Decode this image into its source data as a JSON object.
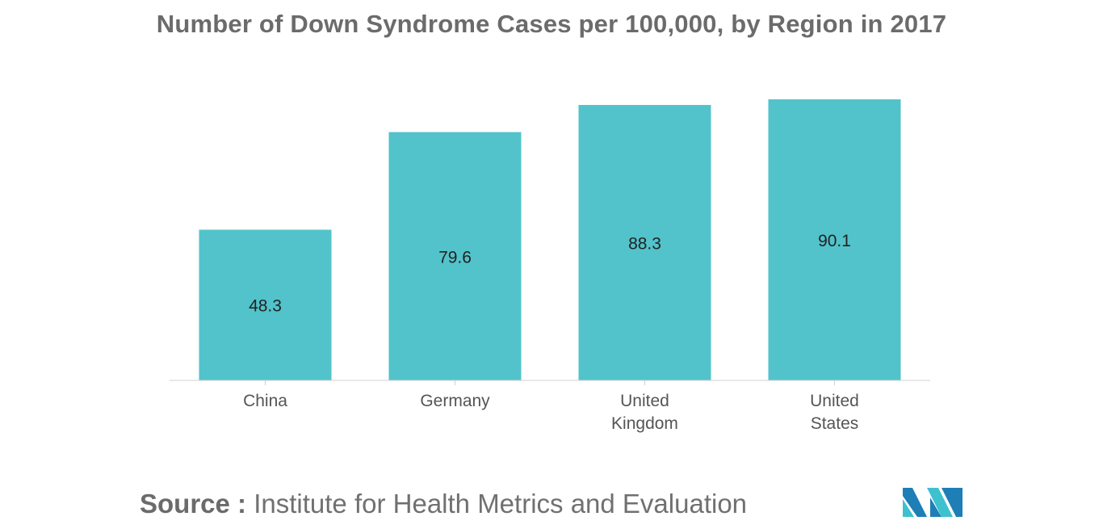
{
  "chart_data": {
    "type": "bar",
    "title": "Number of Down Syndrome Cases per 100,000, by Region in 2017",
    "categories": [
      [
        "China"
      ],
      [
        "Germany"
      ],
      [
        "United",
        "Kingdom"
      ],
      [
        "United",
        "States"
      ]
    ],
    "values": [
      48.3,
      79.6,
      88.3,
      90.1
    ],
    "value_labels": [
      "48.3",
      "79.6",
      "88.3",
      "90.1"
    ],
    "xlabel": "",
    "ylabel": "",
    "ylim": [
      0,
      90.1
    ],
    "grid": false,
    "legend": "none",
    "bar_color": "#52c3ca"
  },
  "source": {
    "label": "Source :",
    "text": "Institute for Health Metrics and Evaluation"
  },
  "logo": {
    "icon": "mordor-intelligence-logo-icon",
    "colors": [
      "#1d7fb6",
      "#3dc1cf"
    ]
  }
}
